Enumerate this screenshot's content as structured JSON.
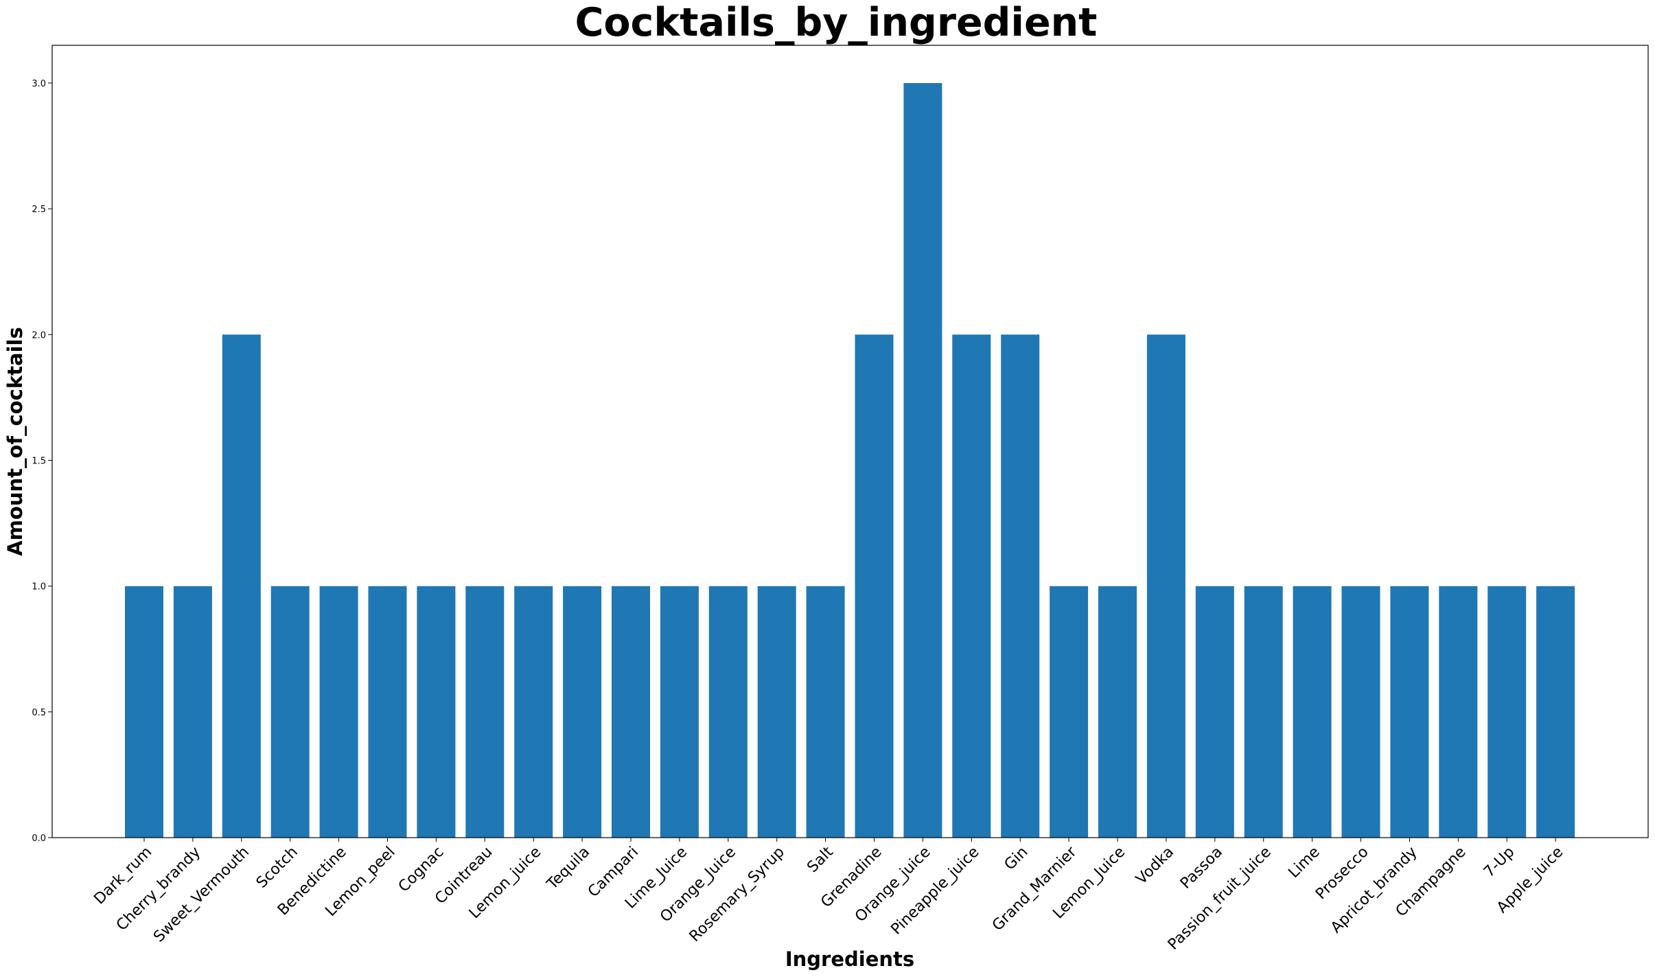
{
  "chart_data": {
    "type": "bar",
    "title": "Cocktails_by_ingredient",
    "xlabel": "Ingredients",
    "ylabel": "Amount_of_cocktails",
    "ylim": [
      0,
      3.15
    ],
    "yticks": [
      "0.0",
      "0.5",
      "1.0",
      "1.5",
      "2.0",
      "2.5",
      "3.0"
    ],
    "ytick_values": [
      0,
      0.5,
      1.0,
      1.5,
      2.0,
      2.5,
      3.0
    ],
    "bar_color": "#1f77b4",
    "grid": false,
    "categories": [
      "Dark_rum",
      "Cherry_brandy",
      "Sweet_Vermouth",
      "Scotch",
      "Benedictine",
      "Lemon_peel",
      "Cognac",
      "Cointreau",
      "Lemon_juice",
      "Tequila",
      "Campari",
      "Lime_Juice",
      "Orange_Juice",
      "Rosemary_Syrup",
      "Salt",
      "Grenadine",
      "Orange_juice",
      "Pineapple_juice",
      "Gin",
      "Grand_Marnier",
      "Lemon_Juice",
      "Vodka",
      "Passoa",
      "Passion_fruit_juice",
      "Lime",
      "Prosecco",
      "Apricot_brandy",
      "Champagne",
      "7-Up",
      "Apple_juice"
    ],
    "values": [
      1,
      1,
      2,
      1,
      1,
      1,
      1,
      1,
      1,
      1,
      1,
      1,
      1,
      1,
      1,
      2,
      3,
      2,
      2,
      1,
      1,
      2,
      1,
      1,
      1,
      1,
      1,
      1,
      1,
      1
    ]
  }
}
